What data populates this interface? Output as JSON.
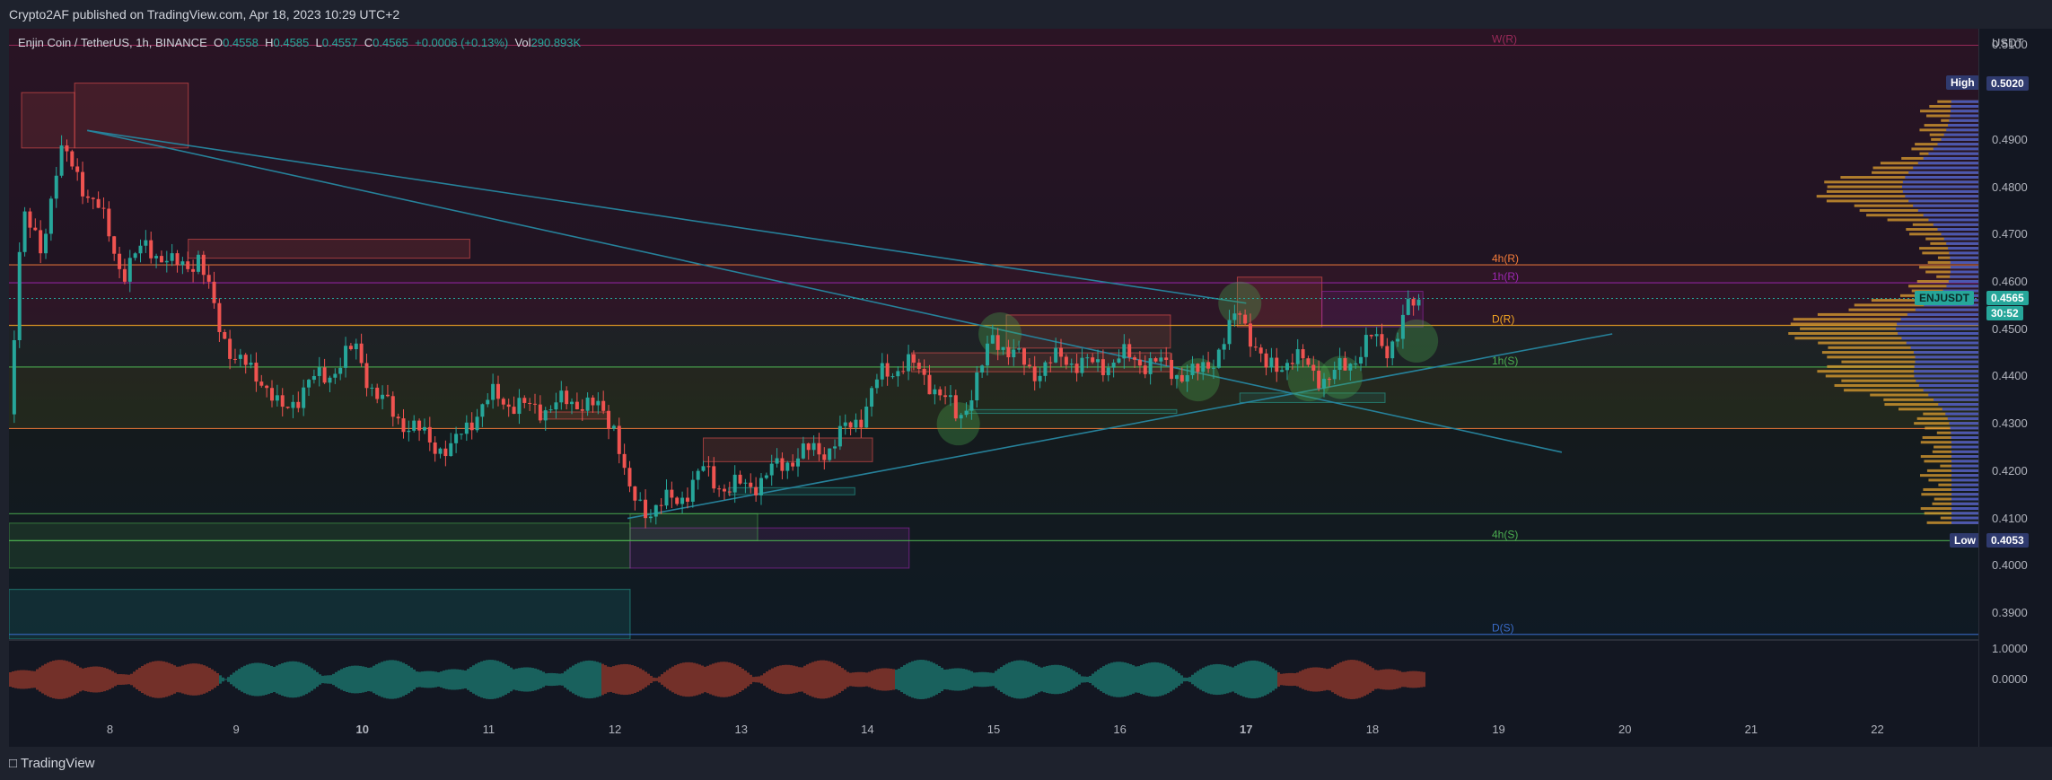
{
  "header": {
    "published_text": "Crypto2AF published on TradingView.com, Apr 18, 2023 10:29 UTC+2"
  },
  "legend": {
    "symbol": "Enjin Coin / TetherUS, 1h, BINANCE",
    "open_label": "O",
    "open": "0.4558",
    "high_label": "H",
    "high": "0.4585",
    "low_label": "L",
    "low": "0.4557",
    "close_label": "C",
    "close": "0.4565",
    "change": "+0.0006 (+0.13%)",
    "vol_label": "Vol",
    "volume": "290.893K"
  },
  "price_scale": {
    "currency": "USDT",
    "ticks": [
      "0.5100",
      "0.4900",
      "0.4800",
      "0.4700",
      "0.4600",
      "0.4500",
      "0.4400",
      "0.4300",
      "0.4200",
      "0.4100",
      "0.4000",
      "0.3900"
    ],
    "indicator_ticks": [
      "1.0000",
      "0.0000"
    ],
    "high_label": "High",
    "high_value": "0.5020",
    "low_label": "Low",
    "low_value": "0.4053",
    "last_symbol": "ENJUSDT",
    "last_price": "0.4565",
    "countdown": "30:52"
  },
  "footer": {
    "brand": "TradingView"
  },
  "colors": {
    "up": "#26a69a",
    "down": "#ef5350",
    "background": "#131722",
    "level_orange": "#f57c3a",
    "level_purple": "#9c27b0",
    "level_green": "#4caf50",
    "trendline": "#26819a",
    "volume_profile_up": "#e0a030",
    "volume_profile_poc": "#3a50c8"
  },
  "chart_data": {
    "type": "candlestick",
    "symbol": "ENJUSDT",
    "interval": "1h",
    "x_ticks": [
      "8",
      "9",
      "10",
      "11",
      "12",
      "13",
      "14",
      "15",
      "16",
      "17",
      "18",
      "19",
      "20",
      "21",
      "22"
    ],
    "x_tick_days": [
      8,
      9,
      10,
      11,
      12,
      13,
      14,
      15,
      16,
      17,
      18,
      19,
      20,
      21,
      22
    ],
    "x_range_days": [
      7.2,
      22.8
    ],
    "y_range": [
      0.3845,
      0.5135
    ],
    "y_ticks": [
      0.51,
      0.49,
      0.48,
      0.47,
      0.46,
      0.45,
      0.44,
      0.43,
      0.42,
      0.41,
      0.4,
      0.39
    ],
    "price_path": [
      {
        "day": 7.2,
        "price": 0.432
      },
      {
        "day": 7.3,
        "price": 0.475
      },
      {
        "day": 7.45,
        "price": 0.466
      },
      {
        "day": 7.6,
        "price": 0.488
      },
      {
        "day": 7.75,
        "price": 0.482
      },
      {
        "day": 7.9,
        "price": 0.476
      },
      {
        "day": 8.1,
        "price": 0.462
      },
      {
        "day": 8.3,
        "price": 0.468
      },
      {
        "day": 8.5,
        "price": 0.463
      },
      {
        "day": 8.7,
        "price": 0.465
      },
      {
        "day": 8.85,
        "price": 0.452
      },
      {
        "day": 9.0,
        "price": 0.443
      },
      {
        "day": 9.2,
        "price": 0.44
      },
      {
        "day": 9.35,
        "price": 0.432
      },
      {
        "day": 9.55,
        "price": 0.438
      },
      {
        "day": 9.75,
        "price": 0.441
      },
      {
        "day": 9.95,
        "price": 0.446
      },
      {
        "day": 10.1,
        "price": 0.436
      },
      {
        "day": 10.3,
        "price": 0.431
      },
      {
        "day": 10.5,
        "price": 0.427
      },
      {
        "day": 10.7,
        "price": 0.424
      },
      {
        "day": 10.85,
        "price": 0.431
      },
      {
        "day": 11.05,
        "price": 0.436
      },
      {
        "day": 11.3,
        "price": 0.433
      },
      {
        "day": 11.55,
        "price": 0.434
      },
      {
        "day": 11.75,
        "price": 0.435
      },
      {
        "day": 12.0,
        "price": 0.43
      },
      {
        "day": 12.12,
        "price": 0.414
      },
      {
        "day": 12.25,
        "price": 0.412
      },
      {
        "day": 12.5,
        "price": 0.414
      },
      {
        "day": 12.7,
        "price": 0.42
      },
      {
        "day": 12.9,
        "price": 0.416
      },
      {
        "day": 13.15,
        "price": 0.418
      },
      {
        "day": 13.4,
        "price": 0.423
      },
      {
        "day": 13.7,
        "price": 0.425
      },
      {
        "day": 13.95,
        "price": 0.432
      },
      {
        "day": 14.1,
        "price": 0.44
      },
      {
        "day": 14.3,
        "price": 0.443
      },
      {
        "day": 14.5,
        "price": 0.439
      },
      {
        "day": 14.72,
        "price": 0.431
      },
      {
        "day": 14.9,
        "price": 0.441
      },
      {
        "day": 15.0,
        "price": 0.449
      },
      {
        "day": 15.1,
        "price": 0.446
      },
      {
        "day": 15.3,
        "price": 0.441
      },
      {
        "day": 15.55,
        "price": 0.444
      },
      {
        "day": 15.8,
        "price": 0.442
      },
      {
        "day": 16.0,
        "price": 0.444
      },
      {
        "day": 16.25,
        "price": 0.443
      },
      {
        "day": 16.45,
        "price": 0.441
      },
      {
        "day": 16.6,
        "price": 0.44
      },
      {
        "day": 16.8,
        "price": 0.446
      },
      {
        "day": 16.95,
        "price": 0.454
      },
      {
        "day": 17.05,
        "price": 0.448
      },
      {
        "day": 17.15,
        "price": 0.441
      },
      {
        "day": 17.35,
        "price": 0.444
      },
      {
        "day": 17.5,
        "price": 0.442
      },
      {
        "day": 17.65,
        "price": 0.439
      },
      {
        "day": 17.85,
        "price": 0.444
      },
      {
        "day": 18.0,
        "price": 0.448
      },
      {
        "day": 18.1,
        "price": 0.446
      },
      {
        "day": 18.2,
        "price": 0.449
      },
      {
        "day": 18.3,
        "price": 0.455
      },
      {
        "day": 18.4,
        "price": 0.4565
      }
    ],
    "last_bar": {
      "open": 0.4558,
      "high": 0.4585,
      "low": 0.4557,
      "close": 0.4565
    },
    "period_high": 0.502,
    "period_low": 0.4053,
    "horizontal_levels": [
      {
        "label": "W(R)",
        "price": 0.51,
        "color": "#9c2a5a"
      },
      {
        "label": "4h(R)",
        "price": 0.4636,
        "color": "#f57c3a"
      },
      {
        "label": "1h(R)",
        "price": 0.4598,
        "color": "#9c27b0"
      },
      {
        "label": "D(R)",
        "price": 0.4508,
        "color": "#f5a623"
      },
      {
        "label": "1h(S)",
        "price": 0.442,
        "color": "#4caf50"
      },
      {
        "label": "",
        "price": 0.429,
        "color": "#f57c3a"
      },
      {
        "label": "4h(S)",
        "price": 0.4053,
        "color": "#4caf50"
      },
      {
        "label": "",
        "price": 0.411,
        "color": "#4caf50"
      },
      {
        "label": "D(S)",
        "price": 0.3855,
        "color": "#3a6bc8"
      }
    ],
    "trendlines": [
      {
        "from": {
          "day": 7.82,
          "price": 0.492
        },
        "to": {
          "day": 17.0,
          "price": 0.4555
        }
      },
      {
        "from": {
          "day": 7.82,
          "price": 0.492
        },
        "to": {
          "day": 19.5,
          "price": 0.424
        }
      },
      {
        "from": {
          "day": 12.1,
          "price": 0.41
        },
        "to": {
          "day": 19.9,
          "price": 0.449
        }
      }
    ],
    "zones": [
      {
        "day_from": 7.3,
        "day_to": 7.72,
        "price_from": 0.4883,
        "price_to": 0.5,
        "color": "#ef5350"
      },
      {
        "day_from": 7.72,
        "day_to": 8.62,
        "price_from": 0.4883,
        "price_to": 0.502,
        "color": "#ef5350"
      },
      {
        "day_from": 8.62,
        "day_to": 10.85,
        "price_from": 0.465,
        "price_to": 0.469,
        "color": "#ef5350"
      },
      {
        "day_from": 7.2,
        "day_to": 12.12,
        "price_from": 0.4053,
        "price_to": 0.409,
        "color": "#4caf50"
      },
      {
        "day_from": 7.2,
        "day_to": 12.12,
        "price_from": 0.3995,
        "price_to": 0.4053,
        "color": "#4caf50"
      },
      {
        "day_from": 12.12,
        "day_to": 14.33,
        "price_from": 0.3995,
        "price_to": 0.408,
        "color": "#9c27b0"
      },
      {
        "day_from": 7.2,
        "day_to": 12.12,
        "price_from": 0.3845,
        "price_to": 0.395,
        "color": "#26a69a"
      },
      {
        "day_from": 12.12,
        "day_to": 13.13,
        "price_from": 0.4053,
        "price_to": 0.411,
        "color": "#4caf50"
      },
      {
        "day_from": 12.7,
        "day_to": 14.04,
        "price_from": 0.422,
        "price_to": 0.427,
        "color": "#ef5350"
      },
      {
        "day_from": 14.35,
        "day_to": 16.4,
        "price_from": 0.441,
        "price_to": 0.445,
        "color": "#ef5350"
      },
      {
        "day_from": 15.1,
        "day_to": 16.4,
        "price_from": 0.446,
        "price_to": 0.453,
        "color": "#ef5350"
      },
      {
        "day_from": 16.93,
        "day_to": 17.6,
        "price_from": 0.4505,
        "price_to": 0.461,
        "color": "#ef5350"
      },
      {
        "day_from": 17.6,
        "day_to": 18.4,
        "price_from": 0.4505,
        "price_to": 0.458,
        "color": "#9c27b0"
      },
      {
        "day_from": 11.4,
        "day_to": 11.95,
        "price_from": 0.431,
        "price_to": 0.4325,
        "color": "#ef5350"
      },
      {
        "day_from": 14.8,
        "day_to": 16.45,
        "price_from": 0.4322,
        "price_to": 0.433,
        "color": "#26a69a"
      },
      {
        "day_from": 12.9,
        "day_to": 13.9,
        "price_from": 0.415,
        "price_to": 0.4165,
        "color": "#26a69a"
      },
      {
        "day_from": 16.95,
        "day_to": 18.1,
        "price_from": 0.4345,
        "price_to": 0.4365,
        "color": "#26a69a"
      }
    ],
    "highlight_circles": [
      {
        "day": 14.72,
        "price": 0.43
      },
      {
        "day": 15.05,
        "price": 0.449
      },
      {
        "day": 16.62,
        "price": 0.4393
      },
      {
        "day": 16.95,
        "price": 0.4555
      },
      {
        "day": 17.5,
        "price": 0.4393
      },
      {
        "day": 17.75,
        "price": 0.4398
      },
      {
        "day": 18.35,
        "price": 0.4475
      }
    ],
    "oscillator": {
      "y_ticks": [
        1.0,
        0.0
      ]
    }
  }
}
